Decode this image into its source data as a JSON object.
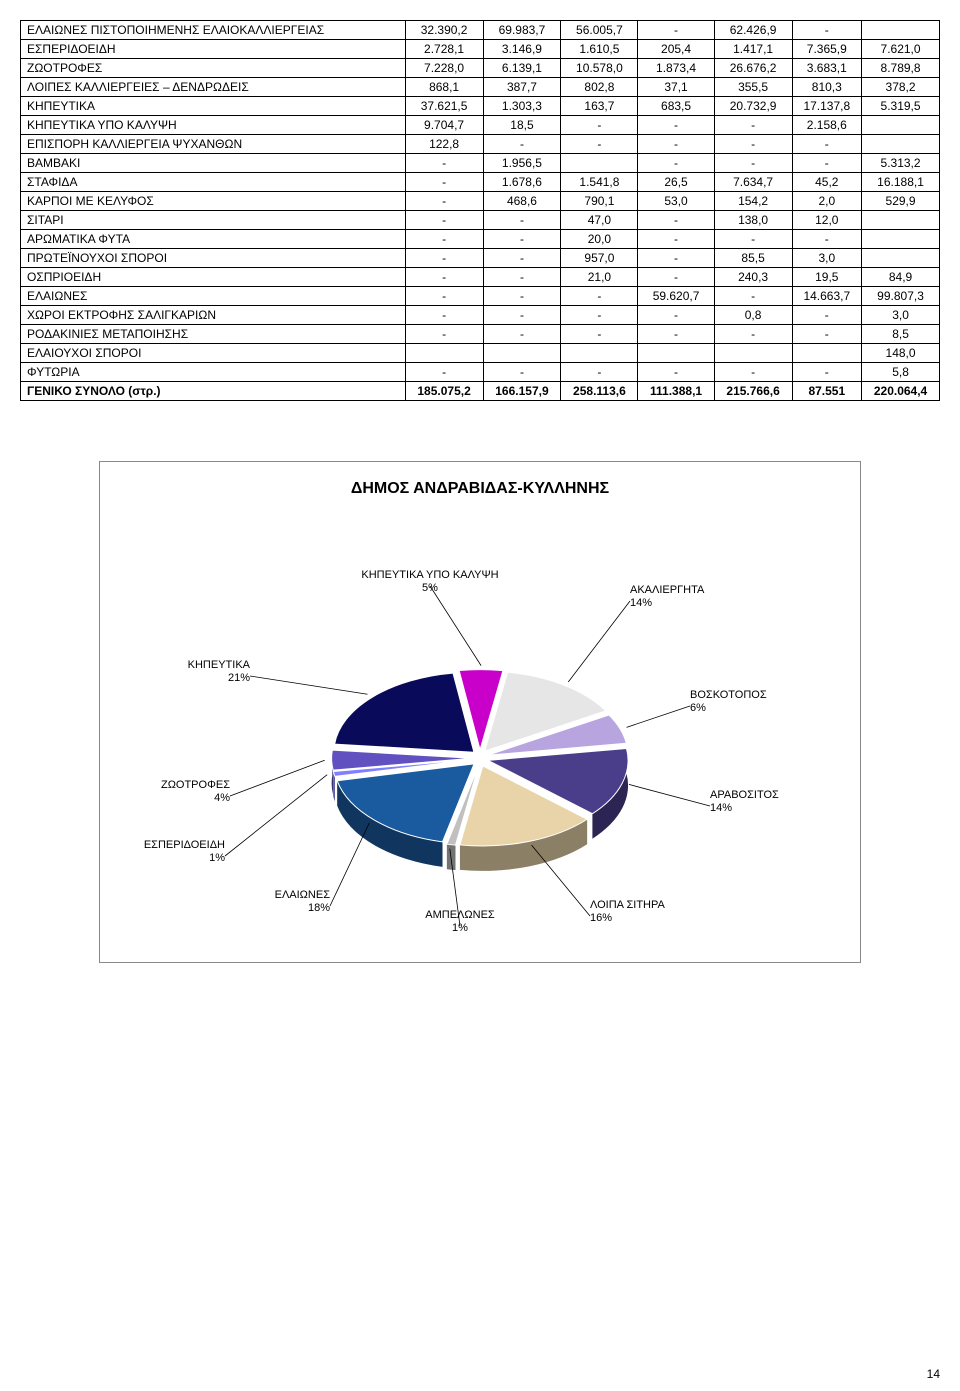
{
  "table": {
    "rows": [
      {
        "label": "ΕΛΑΙΩΝΕΣ ΠΙΣΤΟΠΟΙΗΜΕΝΗΣ ΕΛΑΙΟΚΑΛΛΙΕΡΓΕΙΑΣ",
        "c": [
          "32.390,2",
          "69.983,7",
          "56.005,7",
          "-",
          "62.426,9",
          "-",
          ""
        ]
      },
      {
        "label": "ΕΣΠΕΡΙΔΟΕΙΔΗ",
        "c": [
          "2.728,1",
          "3.146,9",
          "1.610,5",
          "205,4",
          "1.417,1",
          "7.365,9",
          "7.621,0"
        ]
      },
      {
        "label": "ΖΩΟΤΡΟΦΕΣ",
        "c": [
          "7.228,0",
          "6.139,1",
          "10.578,0",
          "1.873,4",
          "26.676,2",
          "3.683,1",
          "8.789,8"
        ]
      },
      {
        "label": "ΛΟΙΠΕΣ ΚΑΛΛΙΕΡΓΕΙΕΣ – ΔΕΝΔΡΩΔΕΙΣ",
        "c": [
          "868,1",
          "387,7",
          "802,8",
          "37,1",
          "355,5",
          "810,3",
          "378,2"
        ]
      },
      {
        "label": "ΚΗΠΕΥΤΙΚΑ",
        "c": [
          "37.621,5",
          "1.303,3",
          "163,7",
          "683,5",
          "20.732,9",
          "17.137,8",
          "5.319,5"
        ]
      },
      {
        "label": "ΚΗΠΕΥΤΙΚΑ ΥΠΟ ΚΑΛΥΨΗ",
        "c": [
          "9.704,7",
          "18,5",
          "-",
          "-",
          "-",
          "2.158,6",
          ""
        ]
      },
      {
        "label": "ΕΠΙΣΠΟΡΗ ΚΑΛΛΙΕΡΓΕΙΑ ΨΥΧΑΝΘΩΝ",
        "c": [
          "122,8",
          "-",
          "-",
          "-",
          "-",
          "-",
          ""
        ]
      },
      {
        "label": "ΒΑΜΒΑΚΙ",
        "c": [
          "-",
          "1.956,5",
          "",
          "-",
          "-",
          "-",
          "5.313,2"
        ]
      },
      {
        "label": "ΣΤΑΦΙΔΑ",
        "c": [
          "-",
          "1.678,6",
          "1.541,8",
          "26,5",
          "7.634,7",
          "45,2",
          "16.188,1"
        ]
      },
      {
        "label": "ΚΑΡΠΟΙ ΜΕ ΚΕΛΥΦΟΣ",
        "c": [
          "-",
          "468,6",
          "790,1",
          "53,0",
          "154,2",
          "2,0",
          "529,9"
        ]
      },
      {
        "label": "ΣΙΤΑΡΙ",
        "c": [
          "-",
          "-",
          "47,0",
          "-",
          "138,0",
          "12,0",
          ""
        ]
      },
      {
        "label": "ΑΡΩΜΑΤΙΚΑ ΦΥΤΑ",
        "c": [
          "-",
          "-",
          "20,0",
          "-",
          "-",
          "-",
          ""
        ]
      },
      {
        "label": "ΠΡΩΤΕΪΝΟΥΧΟΙ ΣΠΟΡΟΙ",
        "c": [
          "-",
          "-",
          "957,0",
          "-",
          "85,5",
          "3,0",
          ""
        ]
      },
      {
        "label": "ΟΣΠΡΙΟΕΙΔΗ",
        "c": [
          "-",
          "-",
          "21,0",
          "-",
          "240,3",
          "19,5",
          "84,9"
        ]
      },
      {
        "label": "ΕΛΑΙΩΝΕΣ",
        "c": [
          "-",
          "-",
          "-",
          "59.620,7",
          "-",
          "14.663,7",
          "99.807,3"
        ]
      },
      {
        "label": "ΧΩΡΟΙ ΕΚΤΡΟΦΗΣ ΣΑΛΙΓΚΑΡΙΩΝ",
        "c": [
          "-",
          "-",
          "-",
          "-",
          "0,8",
          "-",
          "3,0"
        ]
      },
      {
        "label": "ΡΟΔΑΚΙΝΙΕΣ ΜΕΤΑΠΟΙΗΣΗΣ",
        "c": [
          "-",
          "-",
          "-",
          "-",
          "-",
          "-",
          "8,5"
        ]
      },
      {
        "label": "ΕΛΑΙΟΥΧΟΙ ΣΠΟΡΟΙ",
        "c": [
          "",
          "",
          "",
          "",
          "",
          "",
          "148,0"
        ]
      },
      {
        "label": "ΦΥΤΩΡΙΑ",
        "c": [
          "-",
          "-",
          "-",
          "-",
          "-",
          "-",
          "5,8"
        ]
      }
    ],
    "total": {
      "label": "ΓΕΝΙΚΟ ΣΥΝΟΛΟ (στρ.)",
      "c": [
        "185.075,2",
        "166.157,9",
        "258.113,6",
        "111.388,1",
        "215.766,6",
        "87.551",
        "220.064,4"
      ]
    }
  },
  "chart": {
    "title": "ΔΗΜΟΣ ΑΝΔΡΑΒΙΔΑΣ-ΚΥΛΛΗΝΗΣ",
    "slices": [
      {
        "label": "ΚΗΠΕΥΤΙΚΑ ΥΠΟ ΚΑΛΥΨΗ",
        "pct": "5%",
        "value": 5,
        "color": "#c900c9"
      },
      {
        "label": "ΑΚΑΛΙΕΡΓΗΤΑ",
        "pct": "14%",
        "value": 14,
        "color": "#e6e6e6"
      },
      {
        "label": "ΒΟΣΚΟΤΟΠΟΣ",
        "pct": "6%",
        "value": 6,
        "color": "#b8a5e0"
      },
      {
        "label": "ΑΡΑΒΟΣΙΤΟΣ",
        "pct": "14%",
        "value": 14,
        "color": "#4a3e8a"
      },
      {
        "label": "ΛΟΙΠΑ ΣΙΤΗΡΑ",
        "pct": "16%",
        "value": 16,
        "color": "#e8d4a8"
      },
      {
        "label": "ΑΜΠΕΛΩΝΕΣ",
        "pct": "1%",
        "value": 1,
        "color": "#c0c0c0"
      },
      {
        "label": "ΕΛΑΙΩΝΕΣ",
        "pct": "18%",
        "value": 18,
        "color": "#1a5a9e"
      },
      {
        "label": "ΕΣΠΕΡΙΔΟΕΙΔΗ",
        "pct": "1%",
        "value": 1,
        "color": "#8080ff"
      },
      {
        "label": "ΖΩΟΤΡΟΦΕΣ",
        "pct": "4%",
        "value": 4,
        "color": "#6050c0"
      },
      {
        "label": "ΚΗΠΕΥΤΙΚΑ",
        "pct": "21%",
        "value": 21,
        "color": "#0a0a5a"
      }
    ],
    "background": "#ffffff",
    "border_color": "#888888",
    "explode": 0.06
  },
  "page_number": "14"
}
